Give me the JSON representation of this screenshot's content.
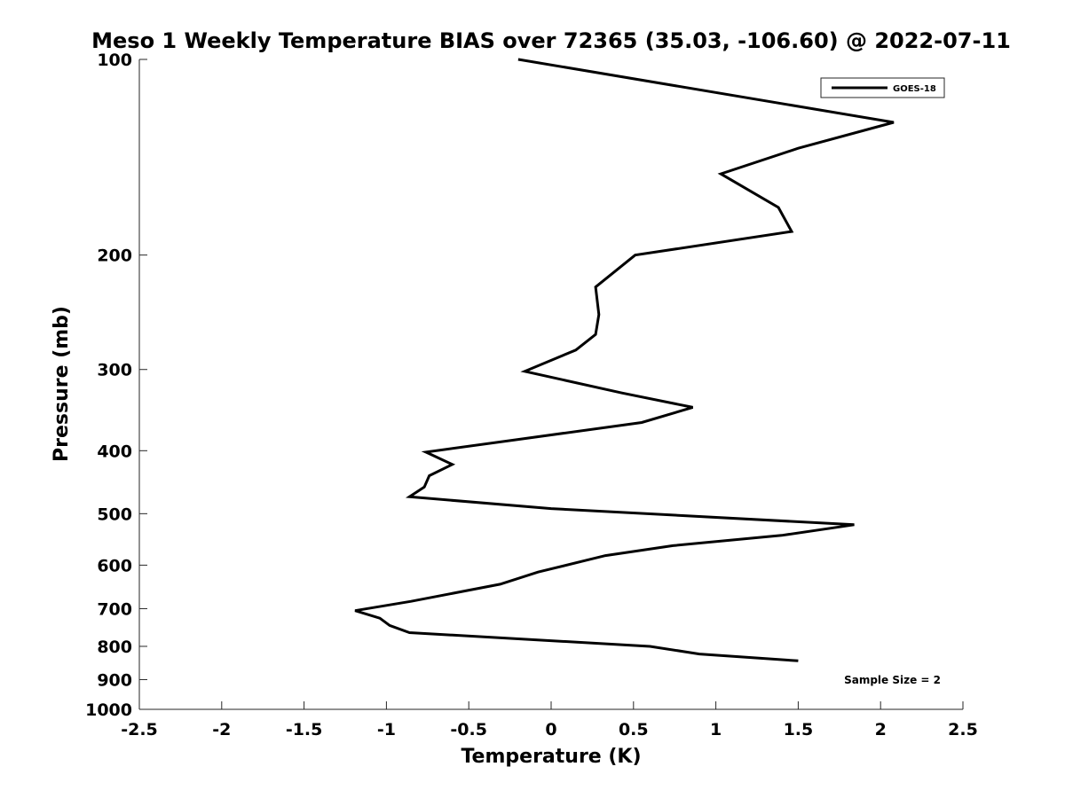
{
  "chart_data": {
    "type": "line",
    "title": "Meso 1 Weekly Temperature BIAS over 72365 (35.03, -106.60) @ 2022-07-11",
    "xlabel": "Temperature (K)",
    "ylabel": "Pressure (mb)",
    "xlim": [
      -2.5,
      2.5
    ],
    "ylim": [
      100,
      1000
    ],
    "y_scale": "log",
    "y_reversed": true,
    "x_ticks": [
      -2.5,
      -2,
      -1.5,
      -1,
      -0.5,
      0,
      0.5,
      1,
      1.5,
      2,
      2.5
    ],
    "x_tick_labels": [
      "-2.5",
      "-2",
      "-1.5",
      "-1",
      "-0.5",
      "0",
      "0.5",
      "1",
      "1.5",
      "2",
      "2.5"
    ],
    "y_ticks": [
      100,
      200,
      300,
      400,
      500,
      600,
      700,
      800,
      900,
      1000
    ],
    "y_tick_labels": [
      "100",
      "200",
      "300",
      "400",
      "500",
      "600",
      "700",
      "800",
      "900",
      "1000"
    ],
    "grid": false,
    "legend_position": "top-right",
    "series": [
      {
        "name": "GOES-18",
        "color": "#000000",
        "points": [
          {
            "x": -0.2,
            "y": 100
          },
          {
            "x": 2.08,
            "y": 125
          },
          {
            "x": 1.5,
            "y": 137
          },
          {
            "x": 1.03,
            "y": 150
          },
          {
            "x": 1.38,
            "y": 169
          },
          {
            "x": 1.46,
            "y": 184
          },
          {
            "x": 0.51,
            "y": 200
          },
          {
            "x": 0.27,
            "y": 224
          },
          {
            "x": 0.29,
            "y": 247
          },
          {
            "x": 0.27,
            "y": 265
          },
          {
            "x": 0.15,
            "y": 280
          },
          {
            "x": -0.16,
            "y": 302
          },
          {
            "x": 0.43,
            "y": 326
          },
          {
            "x": 0.86,
            "y": 343
          },
          {
            "x": 0.55,
            "y": 362
          },
          {
            "x": -0.22,
            "y": 385
          },
          {
            "x": -0.76,
            "y": 402
          },
          {
            "x": -0.6,
            "y": 420
          },
          {
            "x": -0.74,
            "y": 437
          },
          {
            "x": -0.77,
            "y": 455
          },
          {
            "x": -0.86,
            "y": 471
          },
          {
            "x": 0.0,
            "y": 491
          },
          {
            "x": 1.84,
            "y": 520
          },
          {
            "x": 1.4,
            "y": 540
          },
          {
            "x": 0.74,
            "y": 560
          },
          {
            "x": 0.33,
            "y": 580
          },
          {
            "x": -0.08,
            "y": 615
          },
          {
            "x": -0.31,
            "y": 642
          },
          {
            "x": -0.85,
            "y": 682
          },
          {
            "x": -1.19,
            "y": 705
          },
          {
            "x": -1.04,
            "y": 724
          },
          {
            "x": -0.98,
            "y": 743
          },
          {
            "x": -0.86,
            "y": 762
          },
          {
            "x": 0.6,
            "y": 800
          },
          {
            "x": 0.9,
            "y": 822
          },
          {
            "x": 1.5,
            "y": 842
          }
        ]
      }
    ],
    "annotations": [
      {
        "text": "Sample Size = 2",
        "position": "bottom-right"
      }
    ]
  }
}
